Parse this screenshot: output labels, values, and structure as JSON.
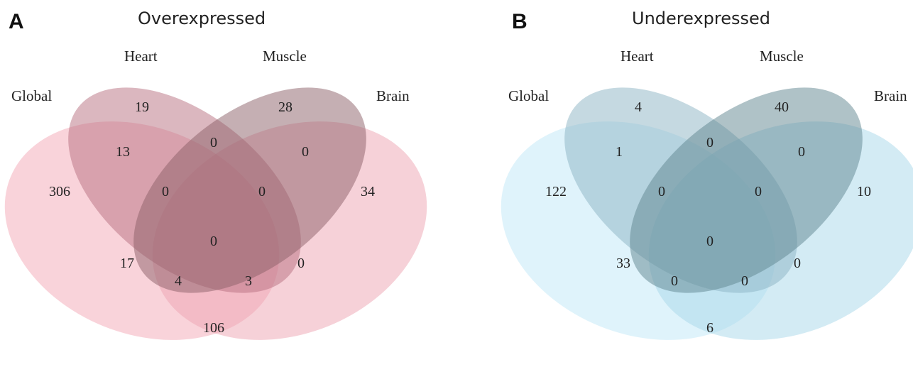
{
  "panels": [
    {
      "letter": "A",
      "title": "Overexpressed",
      "sets": [
        {
          "name": "Global",
          "color": "#f4a7b5"
        },
        {
          "name": "Heart",
          "color": "#b8707f"
        },
        {
          "name": "Muscle",
          "color": "#8c6068"
        },
        {
          "name": "Brain",
          "color": "#eea3b2"
        }
      ],
      "regions": {
        "global_only": "306",
        "heart_only": "19",
        "muscle_only": "28",
        "brain_only": "34",
        "global_heart": "13",
        "heart_muscle": "0",
        "muscle_brain": "0",
        "global_heart_muscle": "0",
        "heart_muscle_brain": "0",
        "all_four": "0",
        "global_muscle": "17",
        "global_muscle_brain": "4",
        "global_heart_brain": "3",
        "heart_brain": "0",
        "global_brain": "106"
      }
    },
    {
      "letter": "B",
      "title": "Underexpressed",
      "sets": [
        {
          "name": "Global",
          "color": "#bfe8f7"
        },
        {
          "name": "Heart",
          "color": "#8cb4c4"
        },
        {
          "name": "Muscle",
          "color": "#5f8690"
        },
        {
          "name": "Brain",
          "color": "#a8d8ea"
        }
      ],
      "regions": {
        "global_only": "122",
        "heart_only": "4",
        "muscle_only": "40",
        "brain_only": "10",
        "global_heart": "1",
        "heart_muscle": "0",
        "muscle_brain": "0",
        "global_heart_muscle": "0",
        "heart_muscle_brain": "0",
        "all_four": "0",
        "global_muscle": "33",
        "global_muscle_brain": "0",
        "global_heart_brain": "0",
        "heart_brain": "0",
        "global_brain": "6"
      }
    }
  ]
}
